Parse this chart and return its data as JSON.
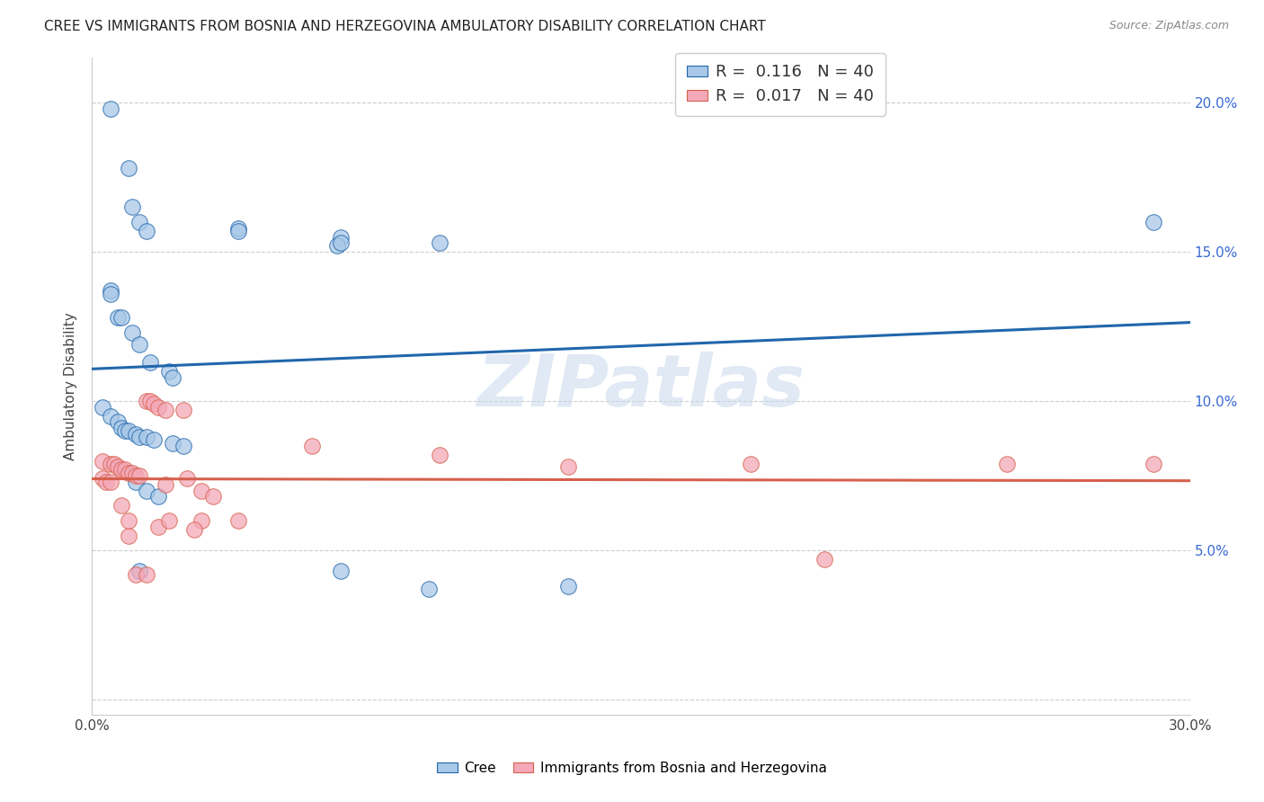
{
  "title": "CREE VS IMMIGRANTS FROM BOSNIA AND HERZEGOVINA AMBULATORY DISABILITY CORRELATION CHART",
  "source": "Source: ZipAtlas.com",
  "ylabel": "Ambulatory Disability",
  "xlim": [
    0,
    0.3
  ],
  "ylim": [
    -0.005,
    0.215
  ],
  "legend_r_blue": "0.116",
  "legend_n_blue": "40",
  "legend_r_pink": "0.017",
  "legend_n_pink": "40",
  "watermark": "ZIPatlas",
  "blue_color": "#a8c8e8",
  "pink_color": "#f4a8b8",
  "trendline_blue": "#2166ac",
  "trendline_pink": "#d6604d",
  "right_axis_color": "#3a6ad4",
  "ytick_vals": [
    0.0,
    0.05,
    0.1,
    0.15,
    0.2
  ],
  "ytick_labels_right": [
    "",
    "5.0%",
    "10.0%",
    "15.0%",
    "20.0%"
  ],
  "xtick_vals": [
    0.0,
    0.05,
    0.1,
    0.15,
    0.2,
    0.25,
    0.3
  ],
  "xtick_labels": [
    "0.0%",
    "",
    "",
    "",
    "",
    "",
    "30.0%"
  ],
  "cree_scatter": [
    [
      0.005,
      0.198
    ],
    [
      0.01,
      0.178
    ],
    [
      0.011,
      0.165
    ],
    [
      0.013,
      0.16
    ],
    [
      0.015,
      0.157
    ],
    [
      0.04,
      0.158
    ],
    [
      0.068,
      0.155
    ],
    [
      0.067,
      0.152
    ],
    [
      0.005,
      0.137
    ],
    [
      0.007,
      0.128
    ],
    [
      0.011,
      0.123
    ],
    [
      0.013,
      0.119
    ],
    [
      0.04,
      0.157
    ],
    [
      0.068,
      0.153
    ],
    [
      0.005,
      0.136
    ],
    [
      0.008,
      0.128
    ],
    [
      0.095,
      0.153
    ],
    [
      0.016,
      0.113
    ],
    [
      0.021,
      0.11
    ],
    [
      0.022,
      0.108
    ],
    [
      0.003,
      0.098
    ],
    [
      0.005,
      0.095
    ],
    [
      0.007,
      0.093
    ],
    [
      0.008,
      0.091
    ],
    [
      0.009,
      0.09
    ],
    [
      0.01,
      0.09
    ],
    [
      0.012,
      0.089
    ],
    [
      0.013,
      0.088
    ],
    [
      0.015,
      0.088
    ],
    [
      0.017,
      0.087
    ],
    [
      0.022,
      0.086
    ],
    [
      0.025,
      0.085
    ],
    [
      0.012,
      0.073
    ],
    [
      0.015,
      0.07
    ],
    [
      0.018,
      0.068
    ],
    [
      0.013,
      0.043
    ],
    [
      0.068,
      0.043
    ],
    [
      0.092,
      0.037
    ],
    [
      0.13,
      0.038
    ],
    [
      0.29,
      0.16
    ]
  ],
  "pink_scatter": [
    [
      0.003,
      0.08
    ],
    [
      0.005,
      0.079
    ],
    [
      0.006,
      0.079
    ],
    [
      0.007,
      0.078
    ],
    [
      0.008,
      0.077
    ],
    [
      0.009,
      0.077
    ],
    [
      0.01,
      0.076
    ],
    [
      0.011,
      0.076
    ],
    [
      0.012,
      0.075
    ],
    [
      0.013,
      0.075
    ],
    [
      0.003,
      0.074
    ],
    [
      0.004,
      0.073
    ],
    [
      0.005,
      0.073
    ],
    [
      0.015,
      0.1
    ],
    [
      0.016,
      0.1
    ],
    [
      0.017,
      0.099
    ],
    [
      0.018,
      0.098
    ],
    [
      0.02,
      0.097
    ],
    [
      0.025,
      0.097
    ],
    [
      0.026,
      0.074
    ],
    [
      0.03,
      0.07
    ],
    [
      0.033,
      0.068
    ],
    [
      0.06,
      0.085
    ],
    [
      0.01,
      0.055
    ],
    [
      0.012,
      0.042
    ],
    [
      0.015,
      0.042
    ],
    [
      0.018,
      0.058
    ],
    [
      0.021,
      0.06
    ],
    [
      0.03,
      0.06
    ],
    [
      0.04,
      0.06
    ],
    [
      0.095,
      0.082
    ],
    [
      0.13,
      0.078
    ],
    [
      0.18,
      0.079
    ],
    [
      0.2,
      0.047
    ],
    [
      0.25,
      0.079
    ],
    [
      0.008,
      0.065
    ],
    [
      0.01,
      0.06
    ],
    [
      0.02,
      0.072
    ],
    [
      0.028,
      0.057
    ],
    [
      0.29,
      0.079
    ]
  ]
}
